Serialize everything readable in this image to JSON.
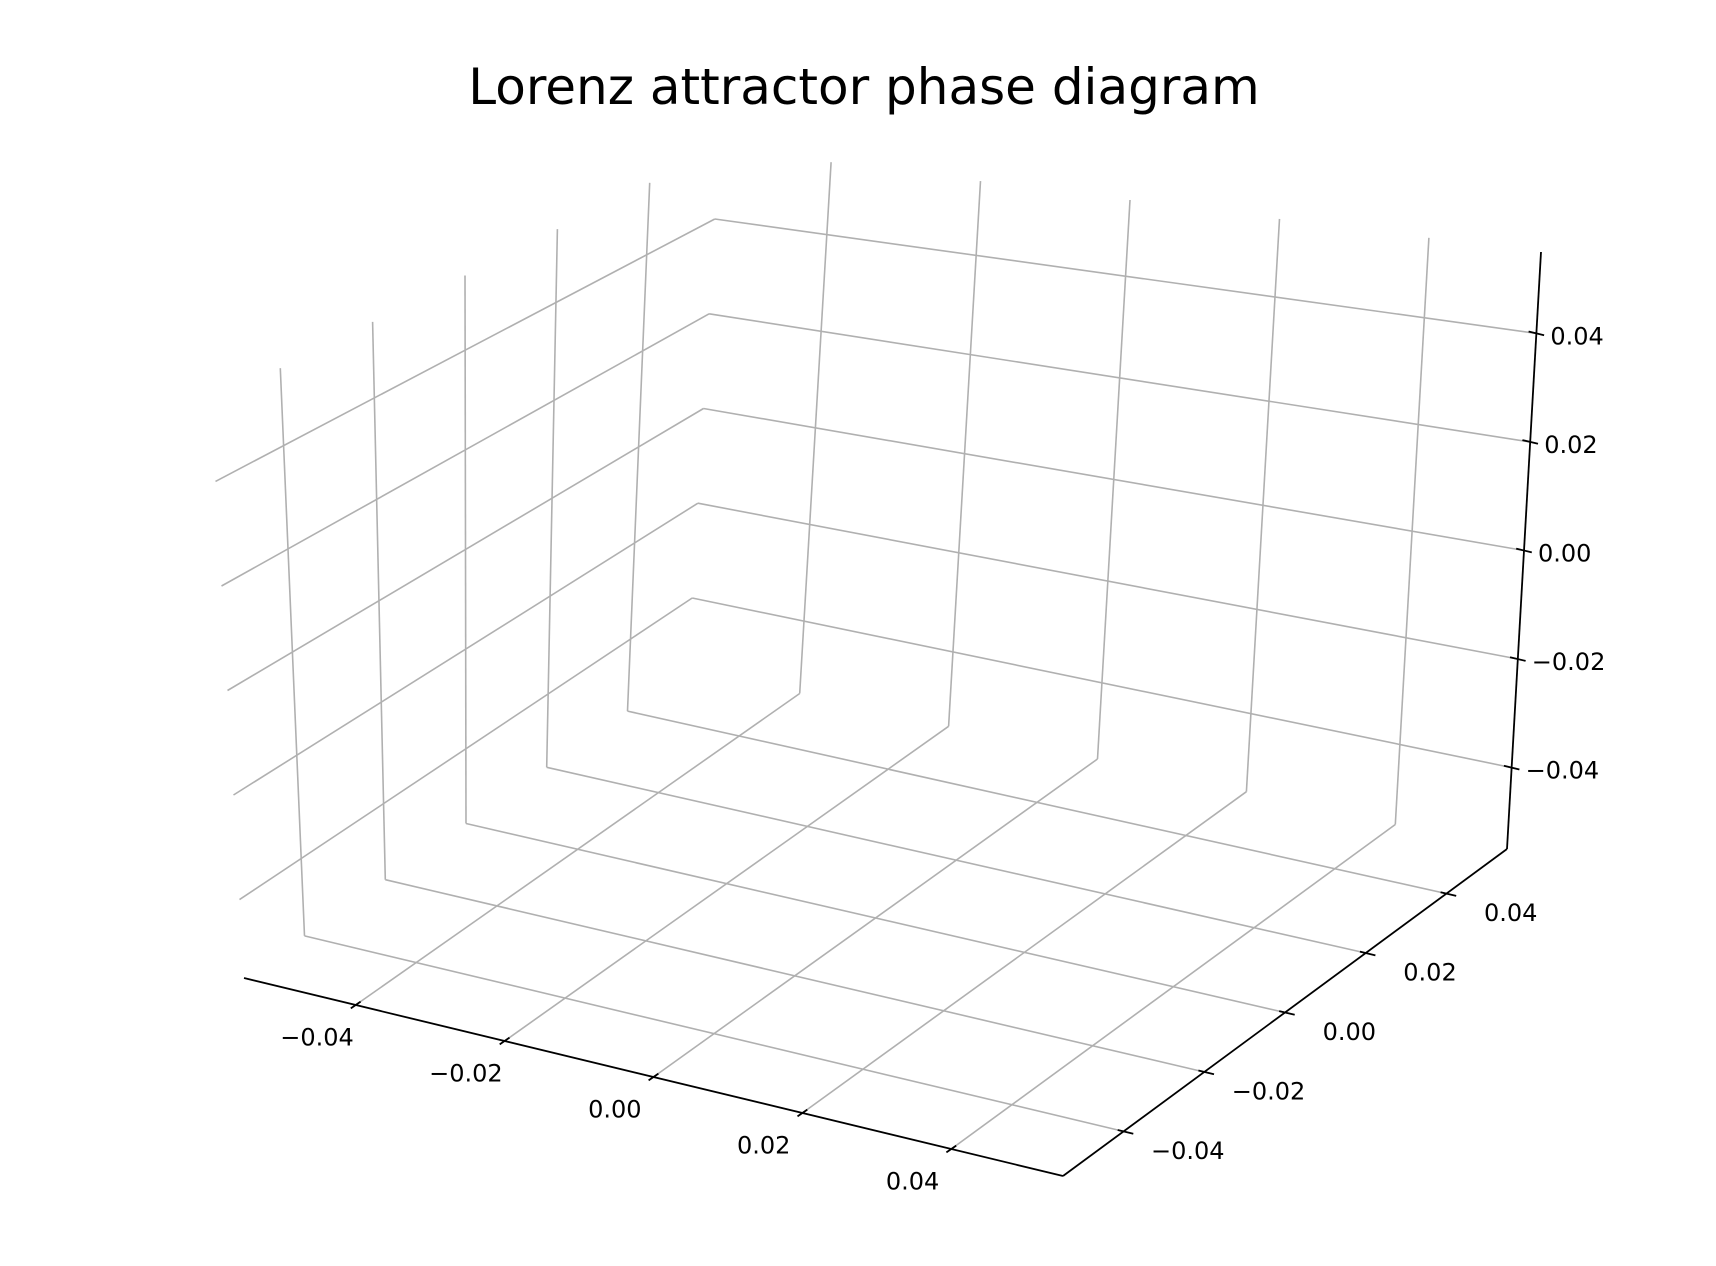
{
  "chart_data": {
    "type": "scatter",
    "projection": "3d",
    "title": "Lorenz attractor phase diagram",
    "xlabel": "",
    "ylabel": "",
    "zlabel": "",
    "series": [],
    "xlim": [
      -0.055,
      0.055
    ],
    "ylim": [
      -0.055,
      0.055
    ],
    "zlim": [
      -0.055,
      0.055
    ],
    "x_ticks": [
      -0.04,
      -0.02,
      0.0,
      0.02,
      0.04
    ],
    "y_ticks": [
      -0.04,
      -0.02,
      0.0,
      0.02,
      0.04
    ],
    "z_ticks": [
      -0.04,
      -0.02,
      0.0,
      0.02,
      0.04
    ],
    "x_tick_labels": [
      "−0.04",
      "−0.02",
      "0.00",
      "0.02",
      "0.04"
    ],
    "y_tick_labels": [
      "−0.04",
      "−0.02",
      "0.00",
      "0.02",
      "0.04"
    ],
    "z_tick_labels": [
      "−0.04",
      "−0.02",
      "0.00",
      "0.02",
      "0.04"
    ],
    "grid": true,
    "panes": "none",
    "colors": {
      "grid": "#b0b0b0",
      "axis": "#000000"
    }
  }
}
